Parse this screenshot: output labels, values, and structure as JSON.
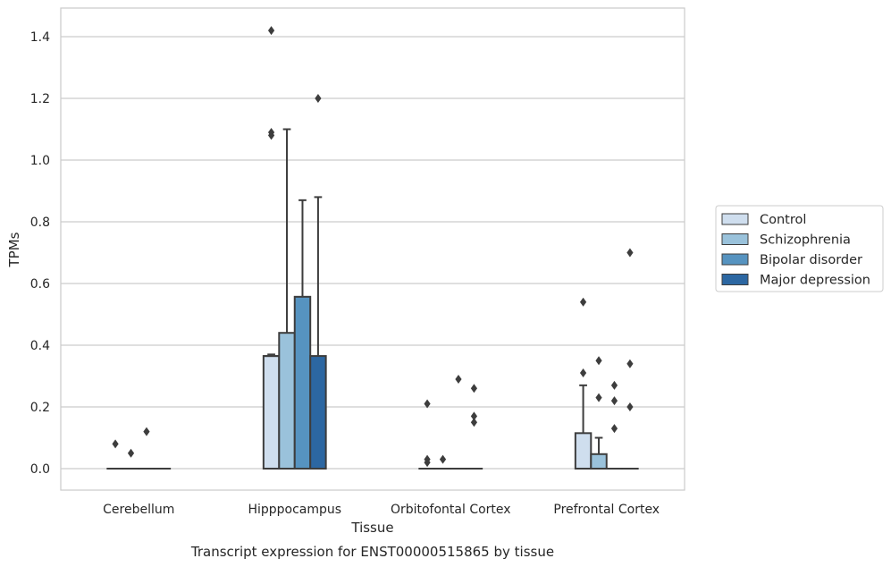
{
  "chart_data": {
    "type": "box",
    "title": "Transcript expression for ENST00000515865 by tissue",
    "xlabel": "Tissue",
    "ylabel": "TPMs",
    "ylim": [
      -0.07,
      1.49
    ],
    "yticks": [
      0.0,
      0.2,
      0.4,
      0.6,
      0.8,
      1.0,
      1.2,
      1.4
    ],
    "ytick_labels": [
      "0.0",
      "0.2",
      "0.4",
      "0.6",
      "0.8",
      "1.0",
      "1.2",
      "1.4"
    ],
    "categories": [
      "Cerebellum",
      "Hipppocampus",
      "Orbitofontal Cortex",
      "Prefrontal Cortex"
    ],
    "grid": "horizontal",
    "legend_position": "right",
    "series": [
      {
        "name": "Control",
        "color": "#cfdeee",
        "boxes": [
          {
            "q1": 0,
            "median": 0,
            "q3": 0,
            "whisker_low": 0,
            "whisker_high": 0,
            "outliers": [
              0.08
            ]
          },
          {
            "q1": 0,
            "median": 0.365,
            "q3": 0.365,
            "whisker_low": 0,
            "whisker_high": 0.37,
            "outliers": [
              1.42,
              1.09,
              1.08
            ]
          },
          {
            "q1": 0,
            "median": 0,
            "q3": 0,
            "whisker_low": 0,
            "whisker_high": 0,
            "outliers": [
              0.21,
              0.03,
              0.02
            ]
          },
          {
            "q1": 0,
            "median": 0,
            "q3": 0.115,
            "whisker_low": 0,
            "whisker_high": 0.27,
            "outliers": [
              0.54,
              0.31
            ]
          }
        ]
      },
      {
        "name": "Schizophrenia",
        "color": "#9ac2db",
        "boxes": [
          {
            "q1": 0,
            "median": 0,
            "q3": 0,
            "whisker_low": 0,
            "whisker_high": 0,
            "outliers": [
              0.05
            ]
          },
          {
            "q1": 0,
            "median": 0,
            "q3": 0.44,
            "whisker_low": 0,
            "whisker_high": 1.1,
            "outliers": []
          },
          {
            "q1": 0,
            "median": 0,
            "q3": 0,
            "whisker_low": 0,
            "whisker_high": 0,
            "outliers": [
              0.03
            ]
          },
          {
            "q1": 0,
            "median": 0,
            "q3": 0.047,
            "whisker_low": 0,
            "whisker_high": 0.1,
            "outliers": [
              0.35,
              0.23
            ]
          }
        ]
      },
      {
        "name": "Bipolar disorder",
        "color": "#5693c0",
        "boxes": [
          {
            "q1": 0,
            "median": 0,
            "q3": 0,
            "whisker_low": 0,
            "whisker_high": 0,
            "outliers": [
              0.12
            ]
          },
          {
            "q1": 0,
            "median": 0,
            "q3": 0.557,
            "whisker_low": 0,
            "whisker_high": 0.87,
            "outliers": []
          },
          {
            "q1": 0,
            "median": 0,
            "q3": 0,
            "whisker_low": 0,
            "whisker_high": 0,
            "outliers": [
              0.29
            ]
          },
          {
            "q1": 0,
            "median": 0,
            "q3": 0,
            "whisker_low": 0,
            "whisker_high": 0,
            "outliers": [
              0.27,
              0.22,
              0.13
            ]
          }
        ]
      },
      {
        "name": "Major depression",
        "color": "#2c67a2",
        "boxes": [
          {
            "q1": 0,
            "median": 0,
            "q3": 0,
            "whisker_low": 0,
            "whisker_high": 0,
            "outliers": []
          },
          {
            "q1": 0,
            "median": 0,
            "q3": 0.365,
            "whisker_low": 0,
            "whisker_high": 0.88,
            "outliers": [
              1.2
            ]
          },
          {
            "q1": 0,
            "median": 0,
            "q3": 0,
            "whisker_low": 0,
            "whisker_high": 0,
            "outliers": [
              0.26,
              0.17,
              0.15
            ]
          },
          {
            "q1": 0,
            "median": 0,
            "q3": 0,
            "whisker_low": 0,
            "whisker_high": 0,
            "outliers": [
              0.7,
              0.34,
              0.2
            ]
          }
        ]
      }
    ]
  }
}
